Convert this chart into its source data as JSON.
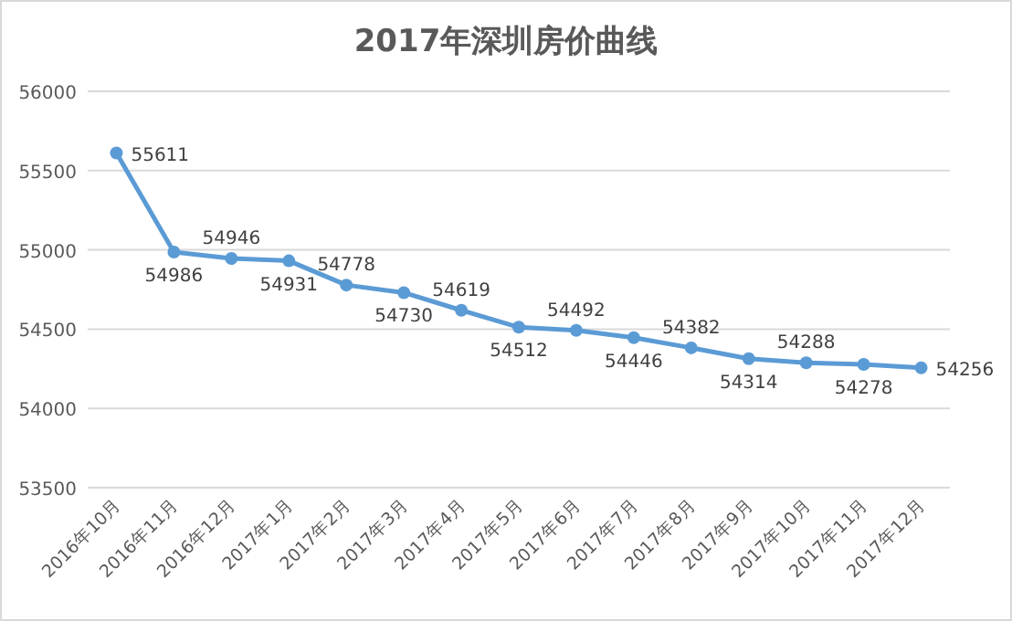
{
  "chart_data": {
    "type": "line",
    "title": "2017年深圳房价曲线",
    "categories": [
      "2016年10月",
      "2016年11月",
      "2016年12月",
      "2017年1月",
      "2017年2月",
      "2017年3月",
      "2017年4月",
      "2017年5月",
      "2017年6月",
      "2017年7月",
      "2017年8月",
      "2017年9月",
      "2017年10月",
      "2017年11月",
      "2017年12月"
    ],
    "series": [
      {
        "color": "#5b9bd5",
        "values": [
          55611,
          54986,
          54946,
          54931,
          54778,
          54730,
          54619,
          54512,
          54492,
          54446,
          54382,
          54314,
          54288,
          54278,
          54256
        ]
      }
    ],
    "ylim": [
      53500,
      56000
    ],
    "yticks": [
      53500,
      54000,
      54500,
      55000,
      55500,
      56000
    ],
    "grid": "y",
    "marker": "circle",
    "line_style": "solid",
    "data_labels": true
  }
}
